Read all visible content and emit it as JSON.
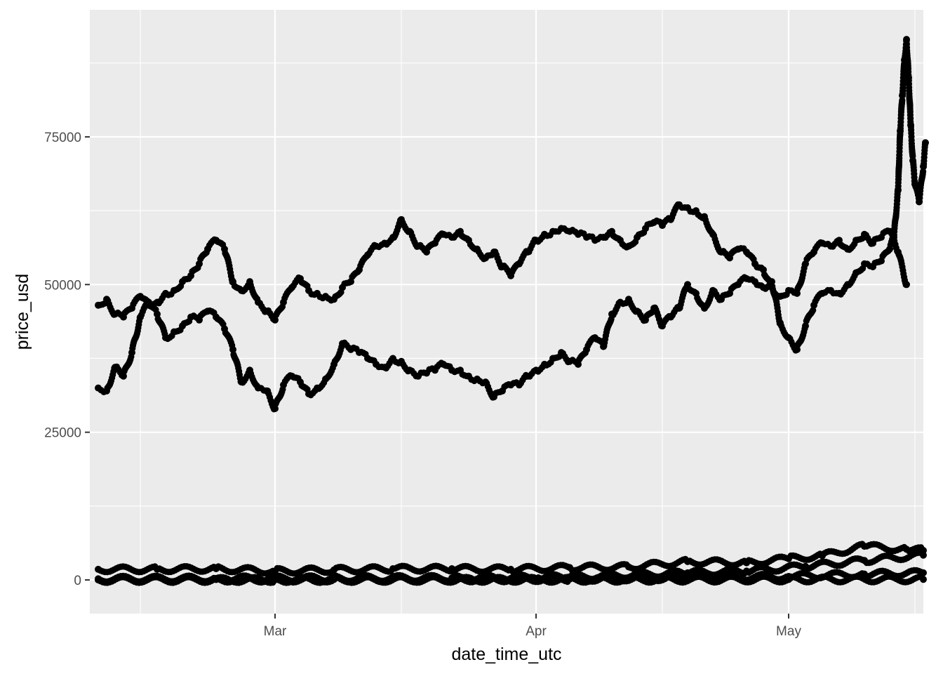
{
  "chart_data": {
    "type": "scatter",
    "title": "",
    "xlabel": "date_time_utc",
    "ylabel": "price_usd",
    "x_range": [
      "2021-02-07",
      "2021-05-17"
    ],
    "ylim": [
      -5700,
      96500
    ],
    "x_ticks": [
      {
        "date": "2021-03-01",
        "label": "Mar"
      },
      {
        "date": "2021-04-01",
        "label": "Apr"
      },
      {
        "date": "2021-05-01",
        "label": "May"
      }
    ],
    "x_minor_grid": [
      "2021-02-13",
      "2021-03-16",
      "2021-04-16",
      "2021-05-16"
    ],
    "y_ticks": [
      0,
      25000,
      50000,
      75000
    ],
    "y_minor_grid": [
      12500,
      37500,
      62500,
      87500
    ],
    "grid": true,
    "point_color": "#000000",
    "panel_color": "#EBEBEB",
    "grid_color": "#FFFFFF",
    "series": [
      {
        "points": [
          [
            "2021-02-08",
            46500
          ],
          [
            "2021-02-09",
            47500
          ],
          [
            "2021-02-10",
            45000
          ],
          [
            "2021-02-11",
            44500
          ],
          [
            "2021-02-12",
            46000
          ],
          [
            "2021-02-13",
            48000
          ],
          [
            "2021-02-14",
            46500
          ],
          [
            "2021-02-15",
            47000
          ],
          [
            "2021-02-16",
            48500
          ],
          [
            "2021-02-17",
            49000
          ],
          [
            "2021-02-18",
            50500
          ],
          [
            "2021-02-19",
            51500
          ],
          [
            "2021-02-20",
            53500
          ],
          [
            "2021-02-21",
            56000
          ],
          [
            "2021-02-22",
            57500
          ],
          [
            "2021-02-23",
            56000
          ],
          [
            "2021-02-24",
            50500
          ],
          [
            "2021-02-25",
            49000
          ],
          [
            "2021-02-26",
            50500
          ],
          [
            "2021-02-27",
            47000
          ],
          [
            "2021-02-28",
            45500
          ],
          [
            "2021-03-01",
            44000
          ],
          [
            "2021-03-02",
            47000
          ],
          [
            "2021-03-03",
            49500
          ],
          [
            "2021-03-04",
            51000
          ],
          [
            "2021-03-05",
            49000
          ],
          [
            "2021-03-06",
            48500
          ],
          [
            "2021-03-07",
            48000
          ],
          [
            "2021-03-08",
            47500
          ],
          [
            "2021-03-09",
            49500
          ],
          [
            "2021-03-10",
            50500
          ],
          [
            "2021-03-11",
            52500
          ],
          [
            "2021-03-12",
            55000
          ],
          [
            "2021-03-13",
            56500
          ],
          [
            "2021-03-14",
            57000
          ],
          [
            "2021-03-15",
            58000
          ],
          [
            "2021-03-16",
            61000
          ],
          [
            "2021-03-17",
            59000
          ],
          [
            "2021-03-18",
            56500
          ],
          [
            "2021-03-19",
            55500
          ],
          [
            "2021-03-20",
            57000
          ],
          [
            "2021-03-21",
            58500
          ],
          [
            "2021-03-22",
            58000
          ],
          [
            "2021-03-23",
            59000
          ],
          [
            "2021-03-24",
            57500
          ],
          [
            "2021-03-25",
            56000
          ],
          [
            "2021-03-26",
            54500
          ],
          [
            "2021-03-27",
            55500
          ],
          [
            "2021-03-28",
            53000
          ],
          [
            "2021-03-29",
            51500
          ],
          [
            "2021-03-30",
            53500
          ],
          [
            "2021-03-31",
            55500
          ],
          [
            "2021-04-01",
            57500
          ],
          [
            "2021-04-02",
            58500
          ],
          [
            "2021-04-03",
            59000
          ],
          [
            "2021-04-04",
            59500
          ],
          [
            "2021-04-05",
            59000
          ],
          [
            "2021-04-06",
            58500
          ],
          [
            "2021-04-07",
            58000
          ],
          [
            "2021-04-08",
            57500
          ],
          [
            "2021-04-09",
            58000
          ],
          [
            "2021-04-10",
            59000
          ],
          [
            "2021-04-11",
            57500
          ],
          [
            "2021-04-12",
            56500
          ],
          [
            "2021-04-13",
            58000
          ],
          [
            "2021-04-14",
            59500
          ],
          [
            "2021-04-15",
            60500
          ],
          [
            "2021-04-16",
            60000
          ],
          [
            "2021-04-17",
            61000
          ],
          [
            "2021-04-18",
            63500
          ],
          [
            "2021-04-19",
            63000
          ],
          [
            "2021-04-20",
            62500
          ],
          [
            "2021-04-21",
            61500
          ],
          [
            "2021-04-22",
            58500
          ],
          [
            "2021-04-23",
            55500
          ],
          [
            "2021-04-24",
            54500
          ],
          [
            "2021-04-25",
            56000
          ],
          [
            "2021-04-26",
            55500
          ],
          [
            "2021-04-27",
            53500
          ],
          [
            "2021-04-28",
            52500
          ],
          [
            "2021-04-29",
            49500
          ],
          [
            "2021-04-30",
            48000
          ],
          [
            "2021-05-01",
            49000
          ],
          [
            "2021-05-02",
            48500
          ],
          [
            "2021-05-03",
            53500
          ],
          [
            "2021-05-04",
            55500
          ],
          [
            "2021-05-05",
            57000
          ],
          [
            "2021-05-06",
            56500
          ],
          [
            "2021-05-07",
            57500
          ],
          [
            "2021-05-08",
            56000
          ],
          [
            "2021-05-09",
            57500
          ],
          [
            "2021-05-10",
            58500
          ],
          [
            "2021-05-11",
            57000
          ],
          [
            "2021-05-12",
            58000
          ],
          [
            "2021-05-13",
            59000
          ],
          [
            "2021-05-14",
            55500
          ],
          [
            "2021-05-15",
            50000
          ]
        ]
      },
      {
        "points": [
          [
            "2021-02-08",
            32500
          ],
          [
            "2021-02-09",
            32000
          ],
          [
            "2021-02-10",
            36000
          ],
          [
            "2021-02-11",
            34500
          ],
          [
            "2021-02-12",
            38500
          ],
          [
            "2021-02-13",
            44500
          ],
          [
            "2021-02-14",
            47000
          ],
          [
            "2021-02-15",
            45000
          ],
          [
            "2021-02-16",
            41000
          ],
          [
            "2021-02-17",
            42000
          ],
          [
            "2021-02-18",
            43000
          ],
          [
            "2021-02-19",
            44500
          ],
          [
            "2021-02-20",
            44000
          ],
          [
            "2021-02-21",
            45500
          ],
          [
            "2021-02-22",
            44500
          ],
          [
            "2021-02-23",
            42500
          ],
          [
            "2021-02-24",
            39000
          ],
          [
            "2021-02-25",
            33500
          ],
          [
            "2021-02-26",
            35500
          ],
          [
            "2021-02-27",
            32500
          ],
          [
            "2021-02-28",
            32000
          ],
          [
            "2021-03-01",
            29000
          ],
          [
            "2021-03-02",
            33000
          ],
          [
            "2021-03-03",
            34500
          ],
          [
            "2021-03-04",
            33500
          ],
          [
            "2021-03-05",
            31500
          ],
          [
            "2021-03-06",
            32500
          ],
          [
            "2021-03-07",
            34000
          ],
          [
            "2021-03-08",
            36500
          ],
          [
            "2021-03-09",
            40000
          ],
          [
            "2021-03-10",
            39000
          ],
          [
            "2021-03-11",
            38500
          ],
          [
            "2021-03-12",
            37500
          ],
          [
            "2021-03-13",
            36500
          ],
          [
            "2021-03-14",
            36000
          ],
          [
            "2021-03-15",
            37500
          ],
          [
            "2021-03-16",
            37000
          ],
          [
            "2021-03-17",
            35500
          ],
          [
            "2021-03-18",
            34500
          ],
          [
            "2021-03-19",
            35000
          ],
          [
            "2021-03-20",
            35500
          ],
          [
            "2021-03-21",
            36500
          ],
          [
            "2021-03-22",
            35500
          ],
          [
            "2021-03-23",
            35500
          ],
          [
            "2021-03-24",
            34500
          ],
          [
            "2021-03-25",
            34000
          ],
          [
            "2021-03-26",
            33500
          ],
          [
            "2021-03-27",
            31000
          ],
          [
            "2021-03-28",
            32000
          ],
          [
            "2021-03-29",
            33000
          ],
          [
            "2021-03-30",
            33000
          ],
          [
            "2021-03-31",
            34500
          ],
          [
            "2021-04-01",
            35500
          ],
          [
            "2021-04-02",
            36500
          ],
          [
            "2021-04-03",
            37500
          ],
          [
            "2021-04-04",
            38500
          ],
          [
            "2021-04-05",
            37000
          ],
          [
            "2021-04-06",
            36500
          ],
          [
            "2021-04-07",
            39000
          ],
          [
            "2021-04-08",
            41000
          ],
          [
            "2021-04-09",
            39500
          ],
          [
            "2021-04-10",
            45000
          ],
          [
            "2021-04-11",
            47000
          ],
          [
            "2021-04-12",
            47500
          ],
          [
            "2021-04-13",
            45500
          ],
          [
            "2021-04-14",
            44000
          ],
          [
            "2021-04-15",
            46000
          ],
          [
            "2021-04-16",
            43000
          ],
          [
            "2021-04-17",
            44500
          ],
          [
            "2021-04-18",
            46000
          ],
          [
            "2021-04-19",
            50000
          ],
          [
            "2021-04-20",
            48500
          ],
          [
            "2021-04-21",
            46000
          ],
          [
            "2021-04-22",
            49000
          ],
          [
            "2021-04-23",
            47500
          ],
          [
            "2021-04-24",
            48500
          ],
          [
            "2021-04-25",
            50000
          ],
          [
            "2021-04-26",
            51000
          ],
          [
            "2021-04-27",
            50500
          ],
          [
            "2021-04-28",
            49500
          ],
          [
            "2021-04-29",
            50500
          ],
          [
            "2021-04-30",
            43500
          ],
          [
            "2021-05-01",
            41000
          ],
          [
            "2021-05-02",
            39000
          ],
          [
            "2021-05-03",
            43000
          ],
          [
            "2021-05-04",
            46500
          ],
          [
            "2021-05-05",
            48500
          ],
          [
            "2021-05-06",
            49000
          ],
          [
            "2021-05-07",
            48500
          ],
          [
            "2021-05-08",
            50000
          ],
          [
            "2021-05-09",
            52000
          ],
          [
            "2021-05-10",
            53500
          ],
          [
            "2021-05-11",
            53000
          ],
          [
            "2021-05-12",
            54000
          ],
          [
            "2021-05-13",
            56000
          ],
          [
            "2021-05-13 12:00",
            58000
          ],
          [
            "2021-05-14",
            66000
          ],
          [
            "2021-05-14 06:00",
            76000
          ],
          [
            "2021-05-14 12:00",
            82000
          ],
          [
            "2021-05-14 18:00",
            88000
          ],
          [
            "2021-05-15",
            91500
          ],
          [
            "2021-05-15 06:00",
            85000
          ],
          [
            "2021-05-15 12:00",
            77000
          ],
          [
            "2021-05-15 18:00",
            71000
          ],
          [
            "2021-05-16",
            67000
          ],
          [
            "2021-05-16 12:00",
            64000
          ],
          [
            "2021-05-17",
            70000
          ],
          [
            "2021-05-17 06:00",
            74000
          ]
        ]
      },
      {
        "points": [
          [
            "2021-02-08",
            1800
          ],
          [
            "2021-02-15",
            1800
          ],
          [
            "2021-02-22",
            1900
          ],
          [
            "2021-03-01",
            1500
          ],
          [
            "2021-03-08",
            1700
          ],
          [
            "2021-03-15",
            1900
          ],
          [
            "2021-03-22",
            1900
          ],
          [
            "2021-03-29",
            1800
          ],
          [
            "2021-04-05",
            2100
          ],
          [
            "2021-04-12",
            2200
          ],
          [
            "2021-04-19",
            3100
          ],
          [
            "2021-04-26",
            2900
          ],
          [
            "2021-05-01",
            3600
          ],
          [
            "2021-05-05",
            4100
          ],
          [
            "2021-05-10",
            5700
          ],
          [
            "2021-05-15",
            5200
          ],
          [
            "2021-05-17",
            5000
          ]
        ]
      },
      {
        "points": [
          [
            "2021-02-08",
            200
          ],
          [
            "2021-02-22",
            250
          ],
          [
            "2021-03-08",
            300
          ],
          [
            "2021-03-22",
            350
          ],
          [
            "2021-04-05",
            500
          ],
          [
            "2021-04-19",
            1200
          ],
          [
            "2021-04-26",
            1500
          ],
          [
            "2021-05-03",
            2300
          ],
          [
            "2021-05-10",
            3300
          ],
          [
            "2021-05-17",
            4200
          ]
        ]
      },
      {
        "points": [
          [
            "2021-02-08",
            50
          ],
          [
            "2021-02-22",
            60
          ],
          [
            "2021-03-08",
            70
          ],
          [
            "2021-03-22",
            90
          ],
          [
            "2021-04-05",
            150
          ],
          [
            "2021-04-19",
            350
          ],
          [
            "2021-05-01",
            600
          ],
          [
            "2021-05-10",
            1000
          ],
          [
            "2021-05-17",
            1200
          ]
        ]
      },
      {
        "points": [
          [
            "2021-02-08",
            0
          ],
          [
            "2021-03-01",
            0
          ],
          [
            "2021-04-01",
            20
          ],
          [
            "2021-05-01",
            80
          ],
          [
            "2021-05-17",
            100
          ]
        ]
      }
    ]
  }
}
